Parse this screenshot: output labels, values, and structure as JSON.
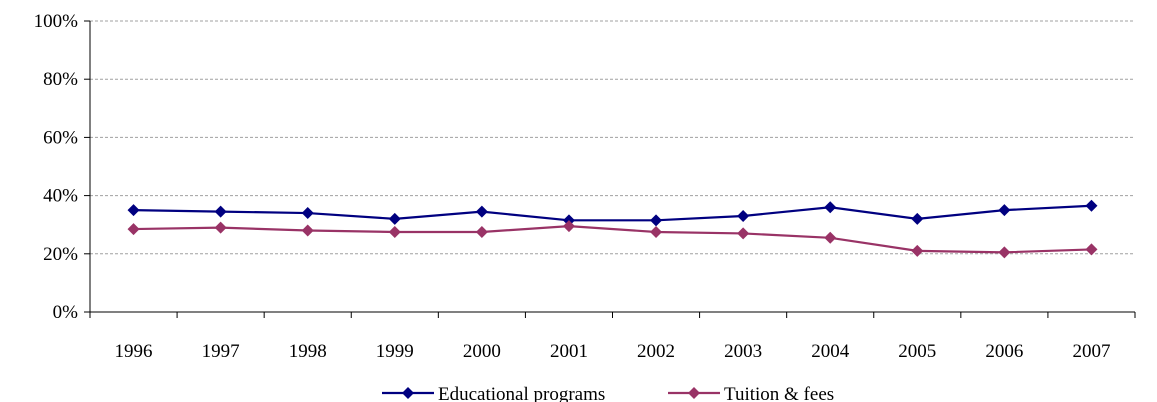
{
  "chart_data": {
    "type": "line",
    "title": "",
    "xlabel": "",
    "ylabel": "",
    "categories": [
      "1996",
      "1997",
      "1998",
      "1999",
      "2000",
      "2001",
      "2002",
      "2003",
      "2004",
      "2005",
      "2006",
      "2007"
    ],
    "ylim": [
      0,
      100
    ],
    "yticks": [
      0,
      20,
      40,
      60,
      80,
      100
    ],
    "ytick_labels": [
      "0%",
      "20%",
      "40%",
      "60%",
      "80%",
      "100%"
    ],
    "grid": true,
    "legend_position": "bottom",
    "series": [
      {
        "name": "Educational programs",
        "color": "#000080",
        "marker": "diamond",
        "values": [
          35,
          34.5,
          34,
          32,
          34.5,
          31.5,
          31.5,
          33,
          36,
          32,
          35,
          36.5
        ]
      },
      {
        "name": "Tuition & fees",
        "color": "#993366",
        "marker": "diamond",
        "values": [
          28.5,
          29,
          28,
          27.5,
          27.5,
          29.5,
          27.5,
          27,
          25.5,
          21,
          20.5,
          21.5
        ]
      }
    ]
  }
}
